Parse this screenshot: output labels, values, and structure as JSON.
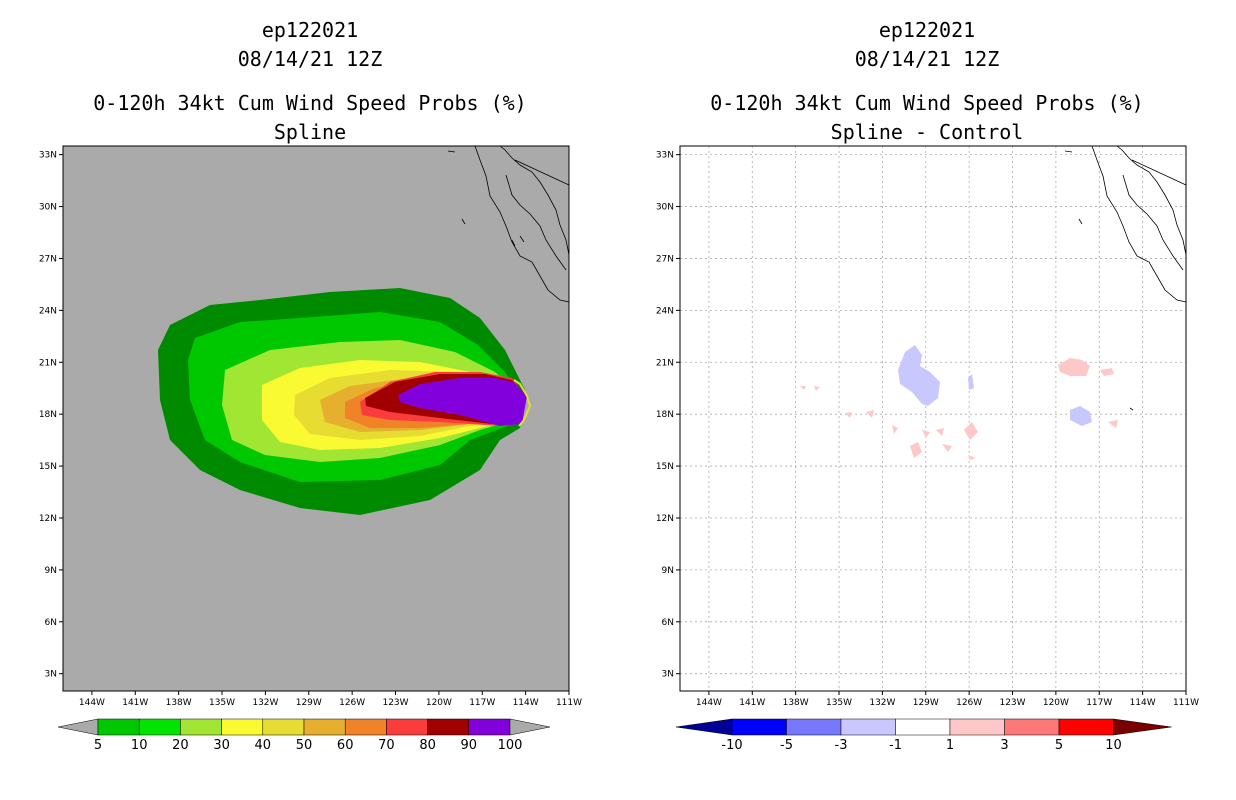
{
  "chart_data": [
    {
      "type": "contour-map",
      "title_lines": [
        "ep122021",
        "08/14/21 12Z",
        "0-120h 34kt Cum Wind Speed Probs (%)",
        "Spline"
      ],
      "lat_ticks": [
        "3N",
        "6N",
        "9N",
        "12N",
        "15N",
        "18N",
        "21N",
        "24N",
        "27N",
        "30N",
        "33N"
      ],
      "lon_ticks": [
        "144W",
        "141W",
        "138W",
        "135W",
        "132W",
        "129W",
        "126W",
        "123W",
        "120W",
        "117W",
        "114W",
        "111W"
      ],
      "lat_range": [
        2,
        33.5
      ],
      "lon_range": [
        -146,
        -111
      ],
      "colorbar": {
        "labels": [
          "5",
          "10",
          "20",
          "30",
          "40",
          "50",
          "60",
          "70",
          "80",
          "90",
          "100"
        ],
        "colors": [
          "#008a00",
          "#00c800",
          "#00e400",
          "#a0e632",
          "#fafa32",
          "#e6dc32",
          "#e6af2d",
          "#f08228",
          "#fa3c3c",
          "#a00000",
          "#8200dc"
        ],
        "end_color": "#aaaaaa"
      },
      "background_color": "#aaaaaa"
    },
    {
      "type": "contour-map",
      "title_lines": [
        "ep122021",
        "08/14/21 12Z",
        "0-120h 34kt Cum Wind Speed Probs (%)",
        "Spline - Control"
      ],
      "lat_ticks": [
        "3N",
        "6N",
        "9N",
        "12N",
        "15N",
        "18N",
        "21N",
        "24N",
        "27N",
        "30N",
        "33N"
      ],
      "lon_ticks": [
        "144W",
        "141W",
        "138W",
        "135W",
        "132W",
        "129W",
        "126W",
        "123W",
        "120W",
        "117W",
        "114W",
        "111W"
      ],
      "lat_range": [
        2,
        33.5
      ],
      "lon_range": [
        -146,
        -111
      ],
      "grid": true,
      "colorbar": {
        "labels": [
          "-10",
          "-5",
          "-3",
          "-1",
          "1",
          "3",
          "5",
          "10"
        ],
        "colors": [
          "#000096",
          "#0000ff",
          "#7878ff",
          "#c8c8ff",
          "#ffffff",
          "#ffc8c8",
          "#ff7878",
          "#ff0000"
        ],
        "end_colors": [
          "#000096",
          "#780000"
        ]
      }
    }
  ]
}
